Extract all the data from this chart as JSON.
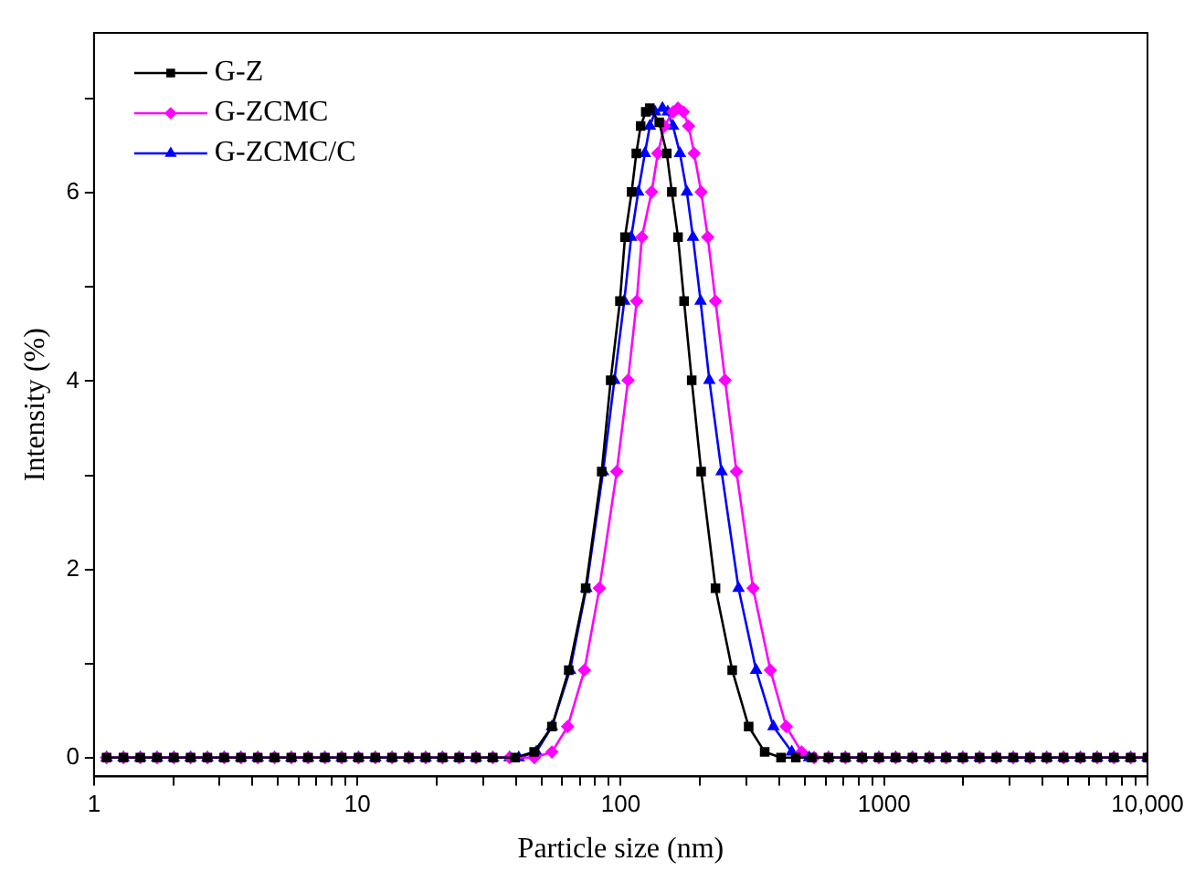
{
  "chart_data": {
    "type": "line",
    "xlabel": "Particle size (nm)",
    "ylabel": "Intensity (%)",
    "log": "x",
    "legend": "top left",
    "xlim": [
      1,
      10000
    ],
    "ylim": [
      -0.2,
      7.7
    ],
    "xticks": [
      1,
      {
        "value": 2,
        "label": null
      },
      {
        "value": 3,
        "label": null
      },
      {
        "value": 4,
        "label": null
      },
      {
        "value": 5,
        "label": null
      },
      {
        "value": 6,
        "label": null
      },
      {
        "value": 7,
        "label": null
      },
      {
        "value": 8,
        "label": null
      },
      {
        "value": 9,
        "label": null
      },
      10,
      {
        "value": 20,
        "label": null
      },
      {
        "value": 30,
        "label": null
      },
      {
        "value": 40,
        "label": null
      },
      {
        "value": 50,
        "label": null
      },
      {
        "value": 60,
        "label": null
      },
      {
        "value": 70,
        "label": null
      },
      {
        "value": 80,
        "label": null
      },
      {
        "value": 90,
        "label": null
      },
      100,
      {
        "value": 200,
        "label": null
      },
      {
        "value": 300,
        "label": null
      },
      {
        "value": 400,
        "label": null
      },
      {
        "value": 500,
        "label": null
      },
      {
        "value": 600,
        "label": null
      },
      {
        "value": 700,
        "label": null
      },
      {
        "value": 800,
        "label": null
      },
      {
        "value": 900,
        "label": null
      },
      1000,
      {
        "value": 2000,
        "label": null
      },
      {
        "value": 3000,
        "label": null
      },
      {
        "value": 4000,
        "label": null
      },
      {
        "value": 5000,
        "label": null
      },
      {
        "value": 6000,
        "label": null
      },
      {
        "value": 7000,
        "label": null
      },
      {
        "value": 8000,
        "label": null
      },
      {
        "value": 9000,
        "label": null
      },
      {
        "value": 10000,
        "label": "10,000"
      }
    ],
    "yticks": [
      0,
      {
        "value": 1,
        "label": null
      },
      2,
      {
        "value": 3,
        "label": null
      },
      4,
      {
        "value": 5,
        "label": null
      },
      6,
      {
        "value": 7,
        "label": null
      }
    ],
    "series": [
      {
        "name": "G-Z",
        "color": "#000000",
        "marker": "square",
        "x": [
          1.117,
          1.294,
          1.499,
          1.736,
          2.01,
          2.328,
          2.696,
          3.122,
          3.615,
          4.187,
          4.849,
          5.615,
          6.503,
          7.531,
          8.721,
          10.1,
          11.7,
          13.54,
          15.69,
          18.17,
          21.04,
          24.36,
          28.21,
          32.67,
          39.7,
          46.9,
          54.8,
          63.5,
          73.6,
          84.7,
          91.6,
          99.3,
          103.8,
          110,
          114.6,
          119,
          124.5,
          129,
          140,
          149.6,
          156.3,
          165,
          174,
          186,
          202,
          229,
          265,
          306,
          352,
          406,
          462,
          531.2,
          615.1,
          712.4,
          825,
          955.4,
          1106,
          1281,
          1484,
          1718,
          1990,
          2305,
          2669,
          3091,
          3580,
          4145,
          4801,
          5560,
          6439,
          7456,
          8635,
          10000
        ],
        "values": [
          0,
          0,
          0,
          0,
          0,
          0,
          0,
          0,
          0,
          0,
          0,
          0,
          0,
          0,
          0,
          0,
          0,
          0,
          0,
          0,
          0,
          0,
          0,
          0,
          0,
          0.06,
          0.33,
          0.93,
          1.8,
          3.04,
          4.01,
          4.85,
          5.53,
          6.01,
          6.42,
          6.71,
          6.86,
          6.9,
          6.75,
          6.42,
          6.01,
          5.53,
          4.85,
          4.01,
          3.04,
          1.8,
          0.93,
          0.33,
          0.06,
          0,
          0,
          0,
          0,
          0,
          0,
          0,
          0,
          0,
          0,
          0,
          0,
          0,
          0,
          0,
          0,
          0,
          0,
          0,
          0,
          0,
          0,
          0
        ]
      },
      {
        "name": "G-ZCMC",
        "color": "#ff00ff",
        "marker": "diamond",
        "x": [
          1.117,
          1.294,
          1.499,
          1.736,
          2.01,
          2.328,
          2.696,
          3.122,
          3.615,
          4.187,
          4.849,
          5.615,
          6.503,
          7.531,
          8.721,
          10.1,
          11.7,
          13.54,
          15.69,
          18.17,
          21.04,
          24.36,
          28.21,
          32.67,
          37.84,
          47,
          54.8,
          62.9,
          72.8,
          83,
          96.6,
          106.6,
          115,
          120.3,
          131,
          138.3,
          146.5,
          157.9,
          165,
          173,
          181,
          190,
          202,
          214,
          229,
          249,
          275,
          318,
          370,
          425,
          486,
          542,
          615.1,
          712.4,
          825,
          955.4,
          1106,
          1281,
          1484,
          1718,
          1990,
          2305,
          2669,
          3091,
          3580,
          4145,
          4801,
          5560,
          6439,
          7456,
          8635,
          10000
        ],
        "values": [
          0,
          0,
          0,
          0,
          0,
          0,
          0,
          0,
          0,
          0,
          0,
          0,
          0,
          0,
          0,
          0,
          0,
          0,
          0,
          0,
          0,
          0,
          0,
          0,
          0,
          0,
          0.06,
          0.33,
          0.93,
          1.8,
          3.04,
          4.01,
          4.85,
          5.53,
          6.01,
          6.42,
          6.71,
          6.86,
          6.9,
          6.86,
          6.71,
          6.42,
          6.01,
          5.53,
          4.85,
          4.01,
          3.04,
          1.8,
          0.93,
          0.33,
          0.06,
          0,
          0,
          0,
          0,
          0,
          0,
          0,
          0,
          0,
          0,
          0,
          0,
          0,
          0,
          0,
          0,
          0,
          0,
          0,
          0,
          0
        ]
      },
      {
        "name": "G-ZCMC/C",
        "color": "#0000ff",
        "marker": "triangle",
        "x": [
          1.117,
          1.294,
          1.499,
          1.736,
          2.01,
          2.328,
          2.696,
          3.122,
          3.615,
          4.187,
          4.849,
          5.615,
          6.503,
          7.531,
          8.721,
          10.1,
          11.7,
          13.54,
          15.69,
          18.17,
          21.04,
          24.36,
          28.21,
          32.67,
          37.84,
          41,
          47.8,
          54.8,
          64.2,
          74,
          85.7,
          94.6,
          103.1,
          109.6,
          116.5,
          123.5,
          129,
          135,
          144,
          150.8,
          157.9,
          167.8,
          178.3,
          188,
          201,
          217,
          241.5,
          280,
          326.6,
          380,
          446,
          519,
          615.1,
          712.4,
          825,
          955.4,
          1106,
          1281,
          1484,
          1718,
          1990,
          2305,
          2669,
          3091,
          3580,
          4145,
          4801,
          5560,
          6439,
          7456,
          8635,
          10000
        ],
        "values": [
          0,
          0,
          0,
          0,
          0,
          0,
          0,
          0,
          0,
          0,
          0,
          0,
          0,
          0,
          0,
          0,
          0,
          0,
          0,
          0,
          0,
          0,
          0,
          0,
          0,
          0,
          0.06,
          0.33,
          0.93,
          1.8,
          3.04,
          4.01,
          4.85,
          5.53,
          6.01,
          6.42,
          6.71,
          6.86,
          6.9,
          6.86,
          6.71,
          6.42,
          6.01,
          5.53,
          4.85,
          4.01,
          3.04,
          1.8,
          0.93,
          0.33,
          0.06,
          0,
          0,
          0,
          0,
          0,
          0,
          0,
          0,
          0,
          0,
          0,
          0,
          0,
          0,
          0,
          0,
          0,
          0,
          0,
          0,
          0
        ]
      }
    ]
  }
}
